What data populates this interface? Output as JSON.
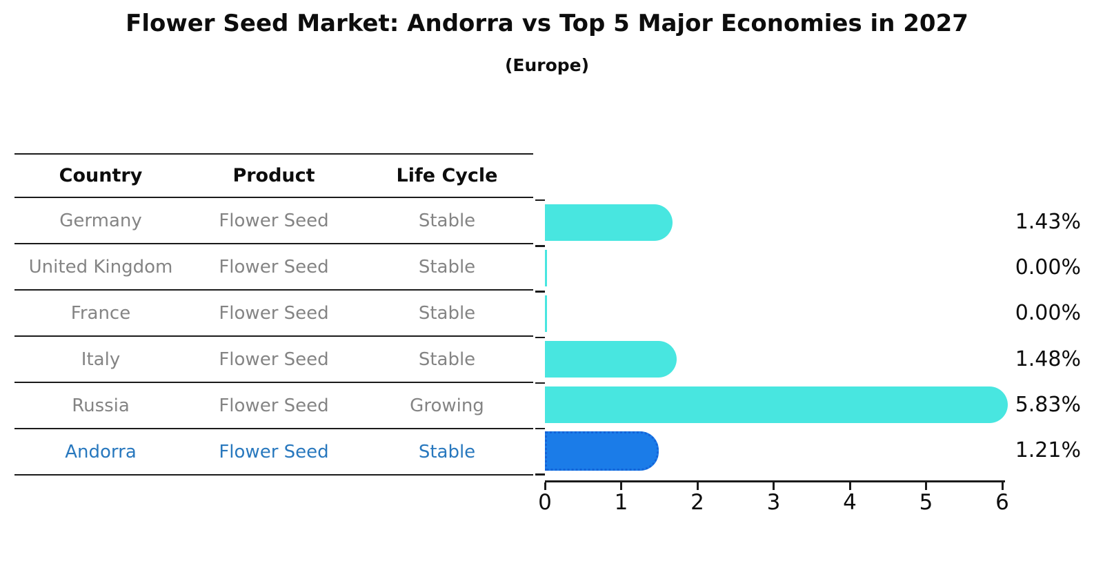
{
  "title": "Flower Seed Market: Andorra vs Top 5 Major Economies in 2027",
  "subtitle": "(Europe)",
  "table": {
    "headers": [
      "Country",
      "Product",
      "Life Cycle"
    ],
    "rows": [
      {
        "country": "Germany",
        "product": "Flower Seed",
        "life_cycle": "Stable",
        "highlight": false
      },
      {
        "country": "United Kingdom",
        "product": "Flower Seed",
        "life_cycle": "Stable",
        "highlight": false
      },
      {
        "country": "France",
        "product": "Flower Seed",
        "life_cycle": "Stable",
        "highlight": false
      },
      {
        "country": "Italy",
        "product": "Flower Seed",
        "life_cycle": "Stable",
        "highlight": false
      },
      {
        "country": "Russia",
        "product": "Flower Seed",
        "life_cycle": "Growing",
        "highlight": false
      },
      {
        "country": "Andorra",
        "product": "Flower Seed",
        "life_cycle": "Stable",
        "highlight": true
      }
    ]
  },
  "chart_data": {
    "type": "bar",
    "orientation": "horizontal",
    "categories": [
      "Germany",
      "United Kingdom",
      "France",
      "Italy",
      "Russia",
      "Andorra"
    ],
    "values": [
      1.43,
      0.0,
      0.0,
      1.48,
      5.83,
      1.21
    ],
    "value_labels": [
      "1.43%",
      "0.00%",
      "0.00%",
      "1.48%",
      "5.83%",
      "1.21%"
    ],
    "title": "Flower Seed Market: Andorra vs Top 5 Major Economies in 2027 (Europe)",
    "xlabel": "",
    "ylabel": "",
    "xlim": [
      0,
      6
    ],
    "x_ticks": [
      "0",
      "1",
      "2",
      "3",
      "4",
      "5",
      "6"
    ],
    "grid": false,
    "legend": false,
    "highlight_index": 5,
    "colors": {
      "bar": "#48e6e0",
      "highlight_bar": "#1b7ce8",
      "highlight_bar_border": "#1463d8",
      "table_text": "#848484",
      "highlight_text": "#2878be",
      "axis_text": "#0d0d0d"
    }
  }
}
